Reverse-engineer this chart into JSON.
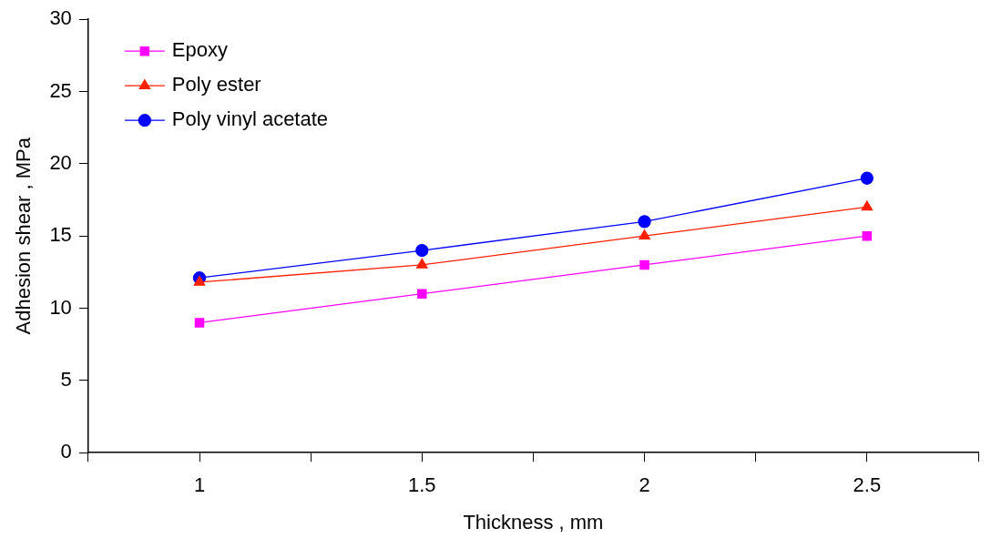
{
  "chart_data": {
    "type": "line",
    "xlabel": "Thickness , mm",
    "ylabel": "Adhesion shear , MPa",
    "xlim": [
      0.75,
      2.75
    ],
    "xticks": [
      {
        "value": 0.75,
        "label": null
      },
      1,
      {
        "value": 1.25,
        "label": null
      },
      1.5,
      {
        "value": 1.75,
        "label": null
      },
      2,
      {
        "value": 2.25,
        "label": null
      },
      2.5,
      {
        "value": 2.75,
        "label": null
      }
    ],
    "ylim": [
      0,
      30
    ],
    "yticks": [
      0,
      5,
      10,
      15,
      20,
      25,
      30
    ],
    "x": [
      1,
      1.5,
      2,
      2.5
    ],
    "series": [
      {
        "name": "Epoxy",
        "color": "#ff00ff",
        "marker": "square",
        "values": [
          9,
          11,
          13,
          15
        ]
      },
      {
        "name": "Poly ester",
        "color": "#ff2000",
        "marker": "triangle",
        "values": [
          11.8,
          13,
          15,
          17
        ]
      },
      {
        "name": "Poly vinyl acetate",
        "color": "#0000ff",
        "marker": "circle",
        "values": [
          12.1,
          14,
          16,
          19
        ]
      }
    ],
    "grid": false,
    "legend": "top left"
  }
}
